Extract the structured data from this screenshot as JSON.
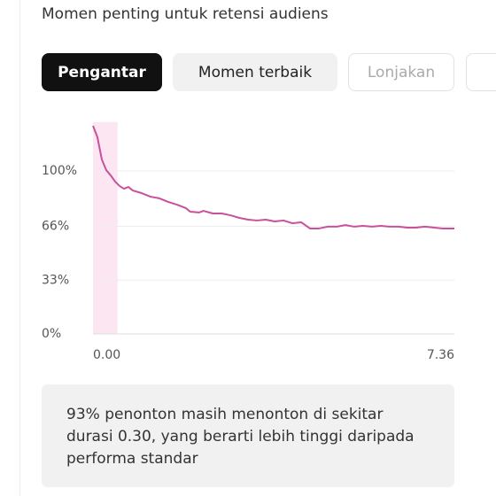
{
  "ui": {
    "title": "Momen penting untuk retensi audiens",
    "tabs": [
      "Pengantar",
      "Momen terbaik",
      "Lonjakan"
    ],
    "note": "93% penonton masih menonton di sekitar durasi 0.30, yang berarti lebih tinggi daripada performa standar"
  },
  "chart_data": {
    "type": "line",
    "color": "#c9509a",
    "highlight": [
      0,
      0.5
    ],
    "highlight_color": "#fbe6f1",
    "x": [
      0,
      0.09,
      0.18,
      0.27,
      0.36,
      0.45,
      0.54,
      0.63,
      0.72,
      0.81,
      0.99,
      1.17,
      1.35,
      1.53,
      1.71,
      1.89,
      1.98,
      2.16,
      2.25,
      2.44,
      2.62,
      2.8,
      2.98,
      3.16,
      3.34,
      3.52,
      3.7,
      3.88,
      4.06,
      4.24,
      4.42,
      4.6,
      4.78,
      4.96,
      5.14,
      5.32,
      5.5,
      5.68,
      5.86,
      6.04,
      6.22,
      6.4,
      6.58,
      6.76,
      6.95,
      7.13,
      7.36
    ],
    "values": [
      127.7,
      120.7,
      107,
      100.5,
      97.3,
      93.5,
      90.8,
      89.1,
      90.2,
      88,
      86.4,
      84.2,
      83.2,
      81,
      79.3,
      77.2,
      75,
      74.5,
      75.5,
      73.9,
      73.9,
      72.8,
      71.2,
      70.1,
      69.6,
      70.1,
      69,
      69.6,
      67.9,
      68.5,
      64.7,
      64.7,
      65.8,
      65.8,
      66.8,
      65.8,
      66.3,
      65.8,
      66.3,
      65.8,
      65.8,
      65.2,
      65.2,
      65.8,
      65.2,
      64.7,
      64.7
    ],
    "xlim": [
      0,
      7.36
    ],
    "ylim": [
      0,
      130
    ],
    "xticks": [
      {
        "value": 0,
        "label": "0.00"
      },
      7.36
    ],
    "yticks": [
      {
        "value": 0,
        "label": "0%"
      },
      {
        "value": 33,
        "label": "33%"
      },
      {
        "value": 66,
        "label": "66%"
      },
      {
        "value": 100,
        "label": "100%"
      }
    ],
    "grid": true
  }
}
